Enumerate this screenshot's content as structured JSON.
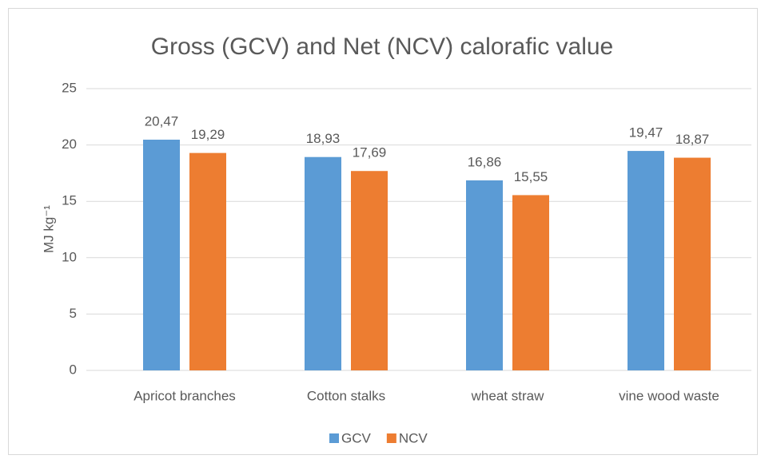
{
  "chart_data": {
    "type": "bar",
    "title": "Gross (GCV) and Net (NCV) calorafic value",
    "y_label": "MJ kg⁻¹",
    "categories": [
      "Apricot branches",
      "Cotton stalks",
      "wheat straw",
      "vine wood waste"
    ],
    "series": [
      {
        "name": "GCV",
        "color": "#5b9bd5",
        "values": [
          20.47,
          18.93,
          16.86,
          19.47
        ],
        "value_labels": [
          "20,47",
          "18,93",
          "16,86",
          "19,47"
        ]
      },
      {
        "name": "NCV",
        "color": "#ed7d31",
        "values": [
          19.29,
          17.69,
          15.55,
          18.87
        ],
        "value_labels": [
          "19,29",
          "17,69",
          "15,55",
          "18,87"
        ]
      }
    ],
    "ylim": [
      0,
      25
    ],
    "yticks": [
      0,
      5,
      10,
      15,
      20,
      25
    ],
    "grid": true,
    "legend": "bottom"
  }
}
